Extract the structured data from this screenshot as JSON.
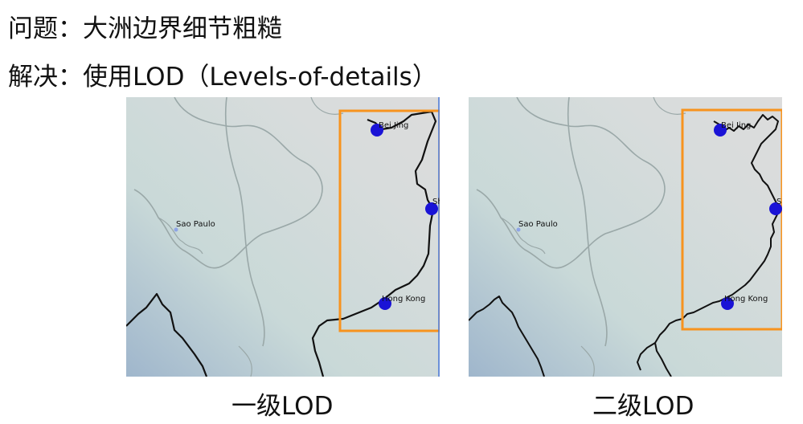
{
  "header": {
    "problem": "问题：大洲边界细节粗糙",
    "solution": "解决：使用LOD（Levels-of-details）"
  },
  "maps": [
    {
      "caption": "一级LOD",
      "cities": {
        "beijing": "Bei Jing",
        "shanghai": "Sh",
        "hongkong": "Hong Kong",
        "saopaulo": "Sao Paulo"
      }
    },
    {
      "caption": "二级LOD",
      "cities": {
        "beijing": "Bei Jing",
        "shanghai": "Sh",
        "hongkong": "Hong Kong",
        "saopaulo": "Sao Paulo"
      }
    }
  ],
  "colors": {
    "highlight": "#f7931e",
    "marker": "#1a13d6",
    "coast": "#111111",
    "faint_border": "#9aa8a8",
    "land": "#d7d7d7",
    "water": "#a9c2cf"
  }
}
